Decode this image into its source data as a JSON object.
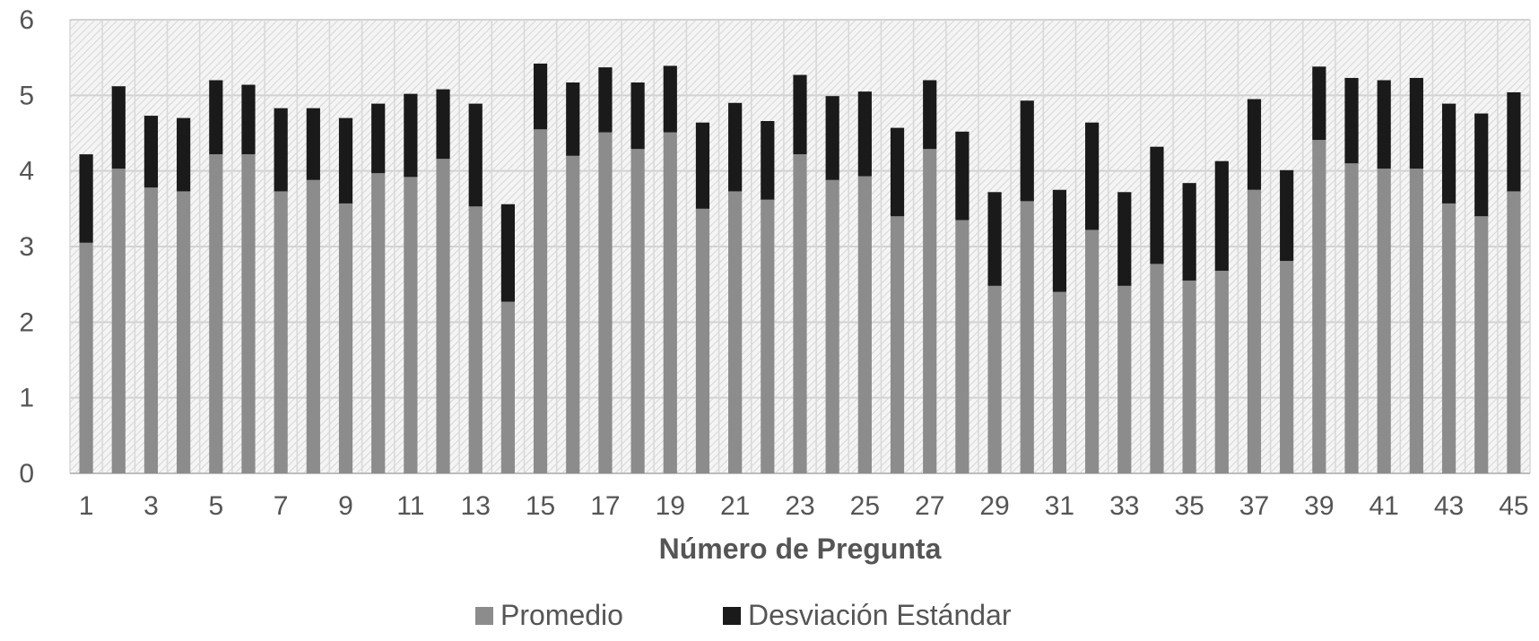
{
  "chart_data": {
    "type": "bar",
    "stacked": true,
    "title": "",
    "xlabel": "Número de Pregunta",
    "ylabel": "",
    "ylim": [
      0,
      6
    ],
    "yticks": [
      0,
      1,
      2,
      3,
      4,
      5,
      6
    ],
    "xtick_labels": [
      "1",
      "3",
      "5",
      "7",
      "9",
      "11",
      "13",
      "15",
      "17",
      "19",
      "21",
      "23",
      "25",
      "27",
      "29",
      "31",
      "33",
      "35",
      "37",
      "39",
      "41",
      "43",
      "45"
    ],
    "categories": [
      "1",
      "2",
      "3",
      "4",
      "5",
      "6",
      "7",
      "8",
      "9",
      "10",
      "11",
      "12",
      "13",
      "14",
      "15",
      "16",
      "17",
      "18",
      "19",
      "20",
      "21",
      "22",
      "23",
      "24",
      "25",
      "26",
      "27",
      "28",
      "29",
      "30",
      "31",
      "32",
      "33",
      "34",
      "35",
      "36",
      "37",
      "38",
      "39",
      "40",
      "41",
      "42",
      "43",
      "44",
      "45"
    ],
    "grid": true,
    "legend_position": "bottom",
    "series": [
      {
        "name": "Promedio",
        "color": "#8c8c8c",
        "values": [
          3.05,
          4.03,
          3.78,
          3.73,
          4.22,
          4.22,
          3.73,
          3.88,
          3.57,
          3.97,
          3.92,
          4.16,
          3.53,
          2.27,
          4.55,
          4.2,
          4.51,
          4.29,
          4.51,
          3.5,
          3.73,
          3.62,
          4.22,
          3.88,
          3.93,
          3.4,
          4.29,
          3.35,
          2.48,
          3.6,
          2.4,
          3.22,
          2.48,
          2.77,
          2.55,
          2.68,
          3.75,
          2.81,
          4.41,
          4.1,
          4.03,
          4.03,
          3.57,
          3.4,
          3.73
        ]
      },
      {
        "name": "Desviación Estándar",
        "color": "#1a1a1a",
        "values": [
          1.17,
          1.09,
          0.95,
          0.97,
          0.98,
          0.92,
          1.1,
          0.95,
          1.13,
          0.92,
          1.1,
          0.92,
          1.36,
          1.29,
          0.87,
          0.97,
          0.86,
          0.88,
          0.88,
          1.14,
          1.17,
          1.04,
          1.05,
          1.11,
          1.12,
          1.17,
          0.91,
          1.17,
          1.24,
          1.33,
          1.35,
          1.42,
          1.24,
          1.55,
          1.29,
          1.45,
          1.2,
          1.2,
          0.97,
          1.13,
          1.17,
          1.2,
          1.32,
          1.36,
          1.31
        ]
      }
    ]
  }
}
